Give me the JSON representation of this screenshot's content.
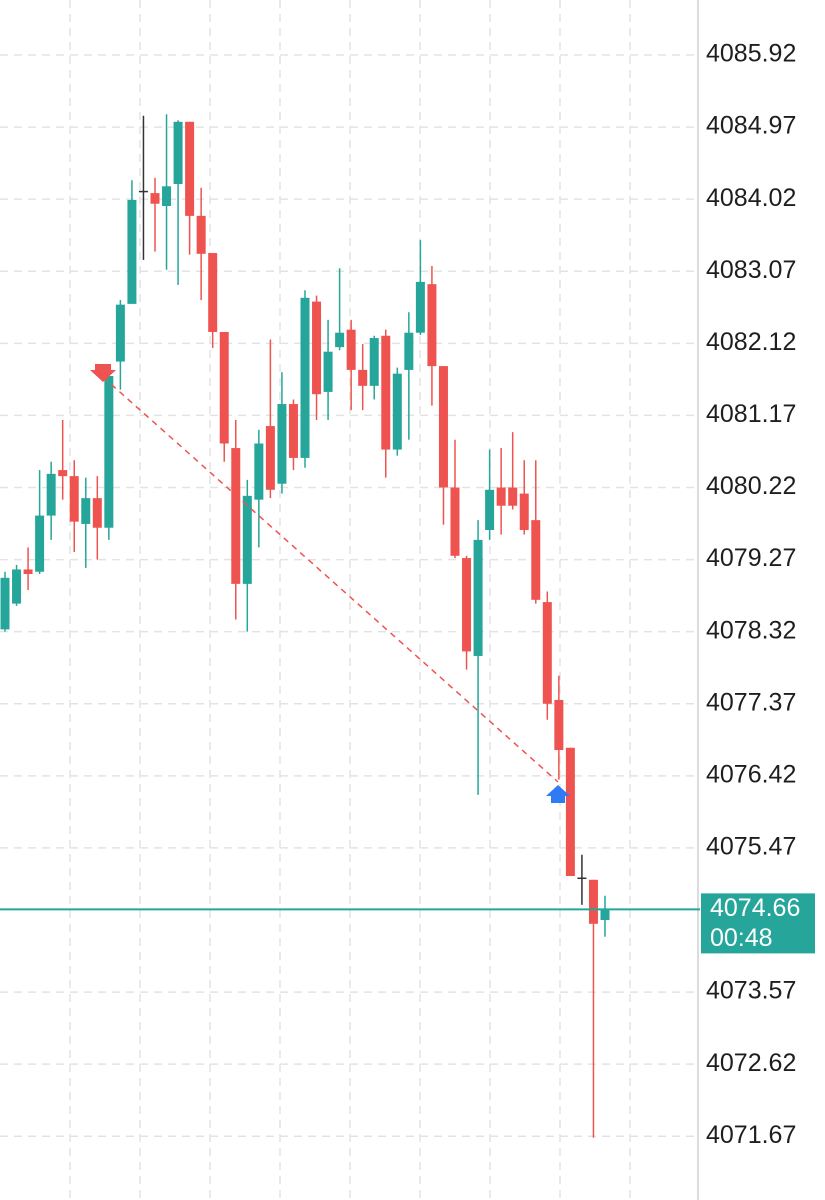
{
  "chart_data": {
    "type": "candlestick",
    "up_color": "#26a69a",
    "down_color": "#ef5350",
    "open": [
      4078.35,
      4078.69,
      4079.14,
      4079.11,
      4079.85,
      4080.45,
      4080.37,
      4079.74,
      4080.08,
      4079.69,
      4081.88,
      4082.64,
      4084.13,
      4084.1,
      4083.93,
      4084.22,
      4085.04,
      4083.8,
      4083.31,
      4082.27,
      4080.74,
      4078.95,
      4080.06,
      4081.03,
      4080.27,
      4081.32,
      4080.61,
      4082.67,
      4081.48,
      4082.07,
      4082.3,
      4081.77,
      4081.56,
      4082.22,
      4080.72,
      4081.77,
      4082.26,
      4082.9,
      4081.82,
      4080.22,
      4079.29,
      4078.0,
      4079.66,
      4080.22,
      4080.22,
      4080.14,
      4079.79,
      4078.71,
      4077.42,
      4076.79,
      4075.08,
      4075.05,
      4074.52
    ],
    "high": [
      4079.11,
      4079.2,
      4079.43,
      4080.45,
      4080.56,
      4081.11,
      4080.58,
      4080.35,
      4080.37,
      4081.74,
      4082.69,
      4084.27,
      4085.12,
      4084.3,
      4085.14,
      4085.06,
      4085.04,
      4084.17,
      4083.31,
      4082.27,
      4081.11,
      4080.32,
      4080.98,
      4082.17,
      4081.74,
      4081.38,
      4082.82,
      4082.75,
      4082.43,
      4083.11,
      4082.43,
      4082.11,
      4082.22,
      4082.3,
      4081.8,
      4082.53,
      4083.48,
      4083.14,
      4081.82,
      4080.85,
      4079.32,
      4079.79,
      4080.72,
      4080.74,
      4080.95,
      4080.58,
      4080.58,
      4078.85,
      4077.74,
      4076.79,
      4075.38,
      4075.05,
      4074.84
    ],
    "low": [
      4078.32,
      4078.66,
      4078.87,
      4079.08,
      4079.53,
      4080.06,
      4079.37,
      4079.16,
      4079.27,
      4079.53,
      4081.51,
      4082.67,
      4083.22,
      4083.33,
      4083.09,
      4082.89,
      4083.29,
      4082.69,
      4082.06,
      4080.56,
      4078.48,
      4078.32,
      4079.43,
      4080.08,
      4080.14,
      4080.45,
      4080.48,
      4081.11,
      4081.11,
      4082.03,
      4081.24,
      4081.24,
      4081.38,
      4080.35,
      4080.64,
      4080.85,
      4082.23,
      4081.3,
      4079.73,
      4079.29,
      4077.82,
      4076.17,
      4079.53,
      4079.6,
      4079.93,
      4079.6,
      4078.69,
      4077.16,
      4076.37,
      4075.1,
      4074.72,
      4071.65,
      4074.3
    ],
    "close": [
      4079.03,
      4079.14,
      4079.08,
      4079.85,
      4080.4,
      4080.37,
      4079.77,
      4080.08,
      4079.69,
      4081.69,
      4082.63,
      4084.01,
      4084.13,
      4083.96,
      4084.19,
      4085.04,
      4083.8,
      4083.3,
      4082.27,
      4080.8,
      4078.95,
      4080.11,
      4080.8,
      4080.19,
      4081.32,
      4080.61,
      4082.72,
      4081.45,
      4082.01,
      4082.26,
      4081.77,
      4081.56,
      4082.19,
      4080.72,
      4081.72,
      4082.26,
      4082.93,
      4081.82,
      4080.22,
      4079.32,
      4078.06,
      4079.53,
      4080.19,
      4079.98,
      4079.98,
      4079.66,
      4078.74,
      4077.37,
      4076.76,
      4075.1,
      4075.08,
      4074.47,
      4074.66
    ],
    "ylim": [
      4070.83,
      4086.645
    ],
    "yticks": [
      4085.92,
      4084.97,
      4084.02,
      4083.07,
      4082.12,
      4081.17,
      4080.22,
      4079.27,
      4078.32,
      4077.37,
      4076.42,
      4075.47,
      4073.57,
      4072.62,
      4071.67
    ],
    "grid": true,
    "last_price": 4074.66,
    "countdown": "00:48"
  }
}
